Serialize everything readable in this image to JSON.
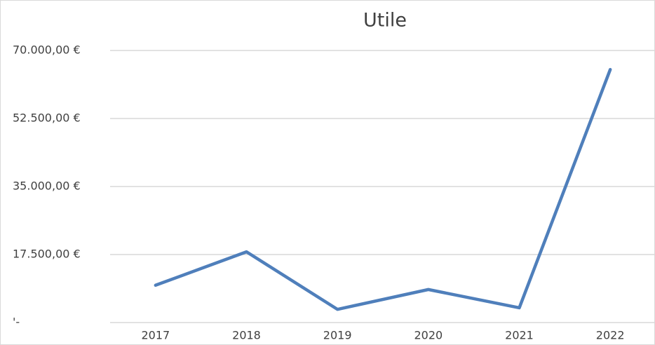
{
  "chart_data": {
    "type": "line",
    "title": "Utile",
    "categories": [
      "2017",
      "2018",
      "2019",
      "2020",
      "2021",
      "2022"
    ],
    "series": [
      {
        "name": "Utile",
        "color": "#4f7fbb",
        "values": [
          9600,
          18200,
          3400,
          8500,
          3800,
          65100
        ]
      }
    ],
    "ylim": [
      0,
      70000
    ],
    "yticks": [
      {
        "value": 0,
        "label": "'-"
      },
      {
        "value": 17500,
        "label": "17.500,00 €"
      },
      {
        "value": 35000,
        "label": "35.000,00 €"
      },
      {
        "value": 52500,
        "label": "52.500,00 €"
      },
      {
        "value": 70000,
        "label": "70.000,00 €"
      }
    ],
    "grid": true
  }
}
